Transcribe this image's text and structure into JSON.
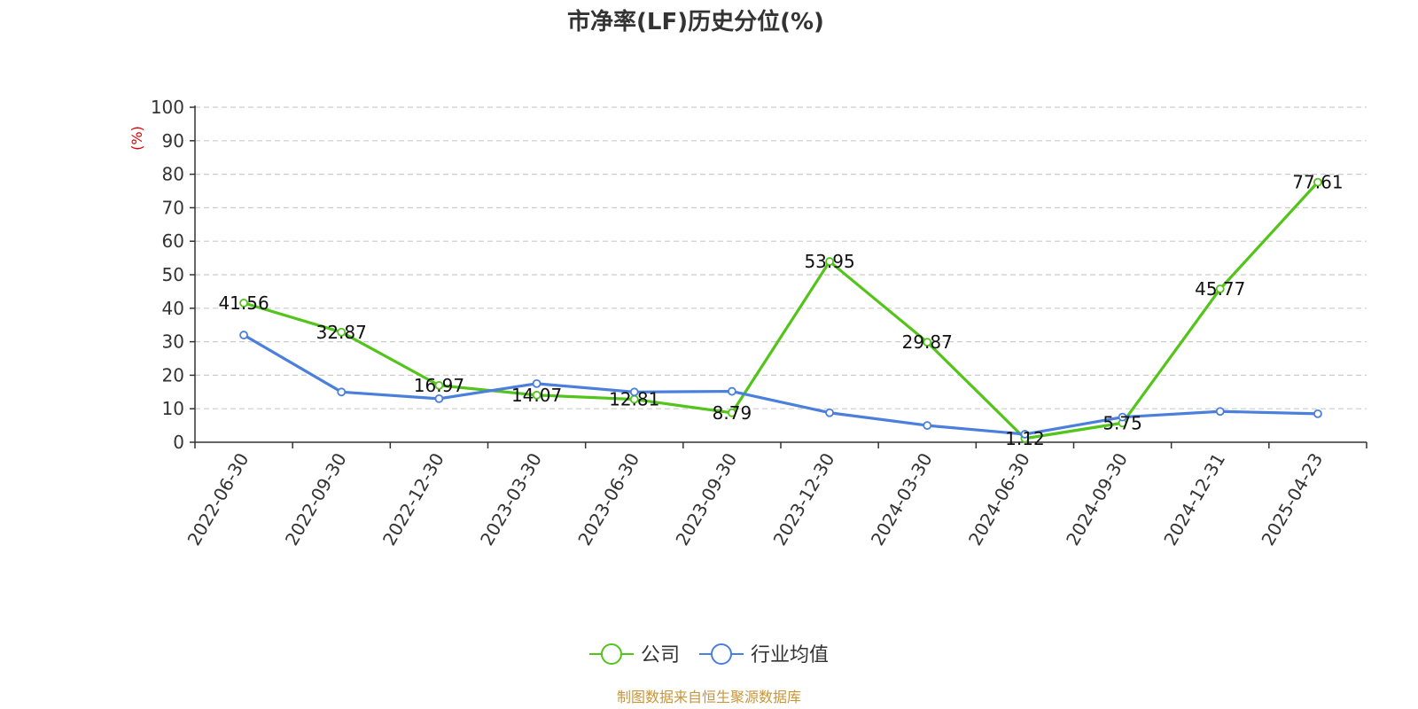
{
  "chart_data": {
    "type": "line",
    "title": "市净率(LF)历史分位(%)",
    "ylabel": "(%)",
    "xlabel": "",
    "ylim": [
      0,
      100
    ],
    "yticks": [
      0,
      10,
      20,
      30,
      40,
      50,
      60,
      70,
      80,
      90,
      100
    ],
    "grid": true,
    "legend_position": "bottom",
    "categories": [
      "2022-06-30",
      "2022-09-30",
      "2022-12-30",
      "2023-03-30",
      "2023-06-30",
      "2023-09-30",
      "2023-12-30",
      "2024-03-30",
      "2024-06-30",
      "2024-09-30",
      "2024-12-31",
      "2025-04-23"
    ],
    "series": [
      {
        "name": "公司",
        "color": "#52c41a",
        "show_labels": true,
        "values": [
          41.56,
          32.87,
          16.97,
          14.07,
          12.81,
          8.79,
          53.95,
          29.87,
          1.12,
          5.75,
          45.77,
          77.61
        ]
      },
      {
        "name": "行业均值",
        "color": "#4a7fdc",
        "show_labels": false,
        "values": [
          32.0,
          15.0,
          13.0,
          17.5,
          15.0,
          15.2,
          8.8,
          5.0,
          2.4,
          7.5,
          9.2,
          8.5
        ]
      }
    ],
    "source": "制图数据来自恒生聚源数据库"
  }
}
